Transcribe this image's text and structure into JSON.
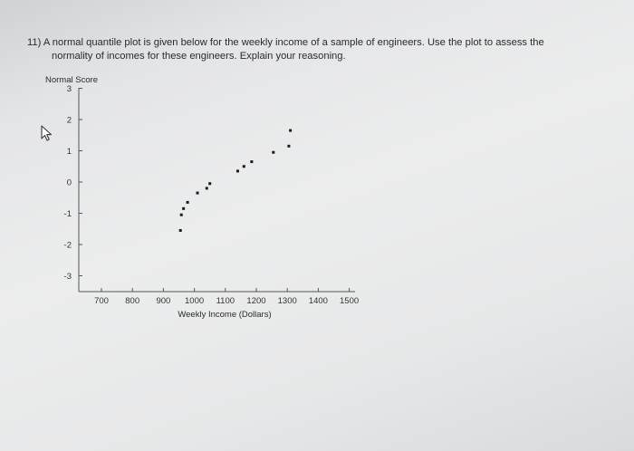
{
  "question": {
    "number": "11)",
    "line1": "A normal quantile plot is given below for the weekly income of a sample of engineers. Use the plot to assess the",
    "line2": "normality of incomes for these engineers. Explain your reasoning."
  },
  "cursor_icon": "mouse-pointer-icon",
  "chart_data": {
    "type": "scatter",
    "title": "",
    "xlabel": "Weekly Income (Dollars)",
    "ylabel": "Normal Score",
    "xlim": [
      650,
      1550
    ],
    "ylim": [
      -3,
      3
    ],
    "x_ticks": [
      700,
      800,
      900,
      1000,
      1100,
      1200,
      1300,
      1400,
      1500
    ],
    "y_ticks": [
      3,
      2,
      1,
      0,
      -1,
      -2,
      -3
    ],
    "grid": false,
    "points": [
      {
        "x": 955,
        "y": -1.55
      },
      {
        "x": 958,
        "y": -1.05
      },
      {
        "x": 965,
        "y": -0.85
      },
      {
        "x": 978,
        "y": -0.65
      },
      {
        "x": 1010,
        "y": -0.35
      },
      {
        "x": 1040,
        "y": -0.2
      },
      {
        "x": 1050,
        "y": -0.05
      },
      {
        "x": 1140,
        "y": 0.35
      },
      {
        "x": 1160,
        "y": 0.5
      },
      {
        "x": 1185,
        "y": 0.65
      },
      {
        "x": 1255,
        "y": 0.95
      },
      {
        "x": 1305,
        "y": 1.15
      },
      {
        "x": 1310,
        "y": 1.65
      }
    ],
    "point_color": "#1a1a1a"
  }
}
